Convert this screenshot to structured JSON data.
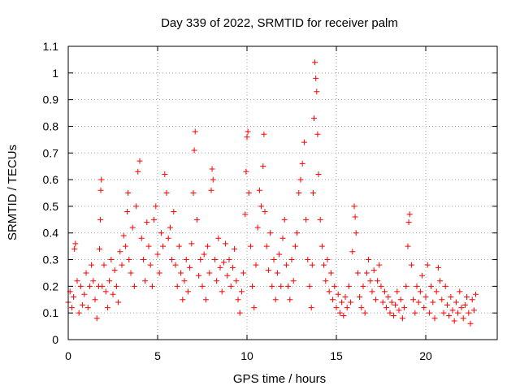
{
  "chart_data": {
    "type": "scatter",
    "title": "Day 339 of 2022, SRMTID for receiver palm",
    "xlabel": "GPS time / hours",
    "ylabel": "SRMTID / TECUs",
    "xlim": [
      0,
      24
    ],
    "ylim": [
      0,
      1.1
    ],
    "xticks": [
      "0",
      "5",
      "10",
      "15",
      "20"
    ],
    "yticks": [
      "0",
      "0.1",
      "0.2",
      "0.3",
      "0.4",
      "0.5",
      "0.6",
      "0.7",
      "0.8",
      "0.9",
      "1",
      "1.1"
    ],
    "grid": true,
    "marker": "+",
    "color": "#ff0000",
    "series": [
      {
        "name": "SRMTID",
        "points": [
          [
            0.0,
            0.14
          ],
          [
            0.1,
            0.18
          ],
          [
            0.2,
            0.12
          ],
          [
            0.3,
            0.16
          ],
          [
            0.35,
            0.34
          ],
          [
            0.4,
            0.36
          ],
          [
            0.5,
            0.22
          ],
          [
            0.6,
            0.1
          ],
          [
            0.7,
            0.2
          ],
          [
            0.8,
            0.13
          ],
          [
            0.9,
            0.17
          ],
          [
            1.0,
            0.25
          ],
          [
            1.1,
            0.12
          ],
          [
            1.2,
            0.2
          ],
          [
            1.3,
            0.28
          ],
          [
            1.4,
            0.22
          ],
          [
            1.5,
            0.15
          ],
          [
            1.6,
            0.08
          ],
          [
            1.7,
            0.2
          ],
          [
            1.75,
            0.34
          ],
          [
            1.8,
            0.45
          ],
          [
            1.82,
            0.56
          ],
          [
            1.85,
            0.6
          ],
          [
            1.9,
            0.2
          ],
          [
            2.0,
            0.28
          ],
          [
            2.1,
            0.18
          ],
          [
            2.2,
            0.12
          ],
          [
            2.3,
            0.22
          ],
          [
            2.4,
            0.3
          ],
          [
            2.5,
            0.17
          ],
          [
            2.6,
            0.26
          ],
          [
            2.7,
            0.2
          ],
          [
            2.8,
            0.14
          ],
          [
            2.9,
            0.33
          ],
          [
            3.0,
            0.28
          ],
          [
            3.1,
            0.39
          ],
          [
            3.2,
            0.35
          ],
          [
            3.3,
            0.48
          ],
          [
            3.35,
            0.55
          ],
          [
            3.4,
            0.3
          ],
          [
            3.5,
            0.25
          ],
          [
            3.6,
            0.42
          ],
          [
            3.7,
            0.2
          ],
          [
            3.8,
            0.5
          ],
          [
            3.9,
            0.63
          ],
          [
            4.0,
            0.67
          ],
          [
            4.1,
            0.38
          ],
          [
            4.2,
            0.3
          ],
          [
            4.3,
            0.22
          ],
          [
            4.4,
            0.44
          ],
          [
            4.5,
            0.35
          ],
          [
            4.6,
            0.28
          ],
          [
            4.7,
            0.2
          ],
          [
            4.8,
            0.45
          ],
          [
            4.9,
            0.5
          ],
          [
            5.0,
            0.32
          ],
          [
            5.1,
            0.25
          ],
          [
            5.2,
            0.4
          ],
          [
            5.3,
            0.35
          ],
          [
            5.4,
            0.62
          ],
          [
            5.5,
            0.55
          ],
          [
            5.6,
            0.38
          ],
          [
            5.7,
            0.42
          ],
          [
            5.8,
            0.3
          ],
          [
            5.9,
            0.48
          ],
          [
            6.0,
            0.28
          ],
          [
            6.1,
            0.2
          ],
          [
            6.2,
            0.35
          ],
          [
            6.3,
            0.25
          ],
          [
            6.4,
            0.15
          ],
          [
            6.5,
            0.22
          ],
          [
            6.6,
            0.3
          ],
          [
            6.7,
            0.18
          ],
          [
            6.8,
            0.27
          ],
          [
            6.9,
            0.36
          ],
          [
            7.0,
            0.55
          ],
          [
            7.05,
            0.71
          ],
          [
            7.1,
            0.78
          ],
          [
            7.2,
            0.45
          ],
          [
            7.3,
            0.24
          ],
          [
            7.4,
            0.3
          ],
          [
            7.5,
            0.2
          ],
          [
            7.6,
            0.32
          ],
          [
            7.7,
            0.15
          ],
          [
            7.8,
            0.35
          ],
          [
            7.9,
            0.25
          ],
          [
            8.0,
            0.56
          ],
          [
            8.05,
            0.64
          ],
          [
            8.1,
            0.6
          ],
          [
            8.2,
            0.3
          ],
          [
            8.3,
            0.22
          ],
          [
            8.4,
            0.38
          ],
          [
            8.5,
            0.27
          ],
          [
            8.6,
            0.18
          ],
          [
            8.7,
            0.29
          ],
          [
            8.8,
            0.36
          ],
          [
            8.9,
            0.24
          ],
          [
            9.0,
            0.3
          ],
          [
            9.1,
            0.2
          ],
          [
            9.2,
            0.27
          ],
          [
            9.3,
            0.34
          ],
          [
            9.4,
            0.22
          ],
          [
            9.5,
            0.15
          ],
          [
            9.6,
            0.1
          ],
          [
            9.7,
            0.18
          ],
          [
            9.8,
            0.25
          ],
          [
            9.9,
            0.47
          ],
          [
            9.95,
            0.63
          ],
          [
            10.0,
            0.76
          ],
          [
            10.05,
            0.78
          ],
          [
            10.1,
            0.55
          ],
          [
            10.2,
            0.35
          ],
          [
            10.3,
            0.2
          ],
          [
            10.4,
            0.12
          ],
          [
            10.5,
            0.28
          ],
          [
            10.6,
            0.42
          ],
          [
            10.7,
            0.56
          ],
          [
            10.8,
            0.5
          ],
          [
            10.9,
            0.65
          ],
          [
            10.95,
            0.77
          ],
          [
            11.0,
            0.48
          ],
          [
            11.1,
            0.35
          ],
          [
            11.2,
            0.26
          ],
          [
            11.3,
            0.4
          ],
          [
            11.4,
            0.2
          ],
          [
            11.5,
            0.3
          ],
          [
            11.6,
            0.15
          ],
          [
            11.7,
            0.25
          ],
          [
            11.8,
            0.32
          ],
          [
            11.9,
            0.2
          ],
          [
            12.0,
            0.38
          ],
          [
            12.1,
            0.45
          ],
          [
            12.2,
            0.28
          ],
          [
            12.3,
            0.2
          ],
          [
            12.4,
            0.15
          ],
          [
            12.5,
            0.3
          ],
          [
            12.6,
            0.22
          ],
          [
            12.7,
            0.35
          ],
          [
            12.8,
            0.4
          ],
          [
            12.9,
            0.55
          ],
          [
            13.0,
            0.6
          ],
          [
            13.1,
            0.66
          ],
          [
            13.2,
            0.74
          ],
          [
            13.3,
            0.45
          ],
          [
            13.4,
            0.3
          ],
          [
            13.5,
            0.2
          ],
          [
            13.6,
            0.12
          ],
          [
            13.65,
            0.28
          ],
          [
            13.7,
            0.55
          ],
          [
            13.75,
            0.83
          ],
          [
            13.8,
            1.04
          ],
          [
            13.85,
            0.98
          ],
          [
            13.9,
            0.93
          ],
          [
            13.95,
            0.77
          ],
          [
            14.0,
            0.62
          ],
          [
            14.1,
            0.45
          ],
          [
            14.2,
            0.35
          ],
          [
            14.3,
            0.28
          ],
          [
            14.4,
            0.22
          ],
          [
            14.5,
            0.3
          ],
          [
            14.6,
            0.18
          ],
          [
            14.7,
            0.25
          ],
          [
            14.8,
            0.15
          ],
          [
            14.9,
            0.2
          ],
          [
            15.0,
            0.12
          ],
          [
            15.1,
            0.17
          ],
          [
            15.2,
            0.1
          ],
          [
            15.3,
            0.14
          ],
          [
            15.4,
            0.09
          ],
          [
            15.5,
            0.16
          ],
          [
            15.6,
            0.12
          ],
          [
            15.7,
            0.2
          ],
          [
            15.8,
            0.14
          ],
          [
            15.9,
            0.33
          ],
          [
            16.0,
            0.5
          ],
          [
            16.05,
            0.46
          ],
          [
            16.1,
            0.4
          ],
          [
            16.2,
            0.25
          ],
          [
            16.3,
            0.16
          ],
          [
            16.4,
            0.12
          ],
          [
            16.5,
            0.2
          ],
          [
            16.6,
            0.1
          ],
          [
            16.7,
            0.25
          ],
          [
            16.8,
            0.3
          ],
          [
            16.9,
            0.22
          ],
          [
            17.0,
            0.18
          ],
          [
            17.1,
            0.26
          ],
          [
            17.2,
            0.15
          ],
          [
            17.3,
            0.22
          ],
          [
            17.4,
            0.28
          ],
          [
            17.5,
            0.2
          ],
          [
            17.6,
            0.14
          ],
          [
            17.7,
            0.18
          ],
          [
            17.8,
            0.12
          ],
          [
            17.9,
            0.16
          ],
          [
            18.0,
            0.1
          ],
          [
            18.1,
            0.14
          ],
          [
            18.2,
            0.09
          ],
          [
            18.3,
            0.13
          ],
          [
            18.4,
            0.18
          ],
          [
            18.5,
            0.11
          ],
          [
            18.6,
            0.15
          ],
          [
            18.7,
            0.08
          ],
          [
            18.8,
            0.12
          ],
          [
            18.9,
            0.2
          ],
          [
            19.0,
            0.35
          ],
          [
            19.05,
            0.44
          ],
          [
            19.1,
            0.47
          ],
          [
            19.2,
            0.28
          ],
          [
            19.3,
            0.15
          ],
          [
            19.4,
            0.1
          ],
          [
            19.5,
            0.2
          ],
          [
            19.6,
            0.14
          ],
          [
            19.7,
            0.18
          ],
          [
            19.8,
            0.24
          ],
          [
            19.9,
            0.12
          ],
          [
            20.0,
            0.16
          ],
          [
            20.1,
            0.28
          ],
          [
            20.2,
            0.1
          ],
          [
            20.3,
            0.2
          ],
          [
            20.4,
            0.14
          ],
          [
            20.5,
            0.08
          ],
          [
            20.6,
            0.18
          ],
          [
            20.7,
            0.27
          ],
          [
            20.8,
            0.22
          ],
          [
            20.9,
            0.15
          ],
          [
            21.0,
            0.1
          ],
          [
            21.1,
            0.2
          ],
          [
            21.2,
            0.13
          ],
          [
            21.3,
            0.09
          ],
          [
            21.4,
            0.16
          ],
          [
            21.5,
            0.11
          ],
          [
            21.6,
            0.07
          ],
          [
            21.7,
            0.14
          ],
          [
            21.8,
            0.1
          ],
          [
            21.9,
            0.18
          ],
          [
            22.0,
            0.12
          ],
          [
            22.1,
            0.08
          ],
          [
            22.2,
            0.13
          ],
          [
            22.3,
            0.16
          ],
          [
            22.4,
            0.1
          ],
          [
            22.5,
            0.06
          ],
          [
            22.6,
            0.15
          ],
          [
            22.7,
            0.11
          ],
          [
            22.8,
            0.17
          ]
        ]
      }
    ]
  }
}
